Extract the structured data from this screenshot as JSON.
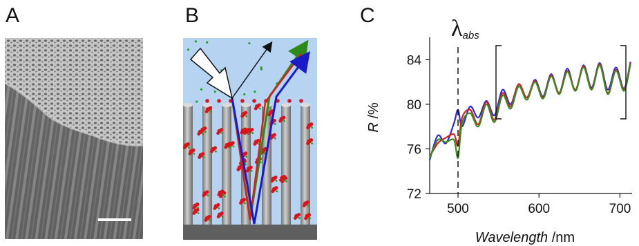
{
  "panels": {
    "a": {
      "letter": "A"
    },
    "b": {
      "letter": "B"
    },
    "c": {
      "letter": "C"
    }
  },
  "chart_data": {
    "type": "line",
    "title": "",
    "xlabel_italic": "Wavelength",
    "xlabel_unit": " /nm",
    "ylabel_italic": "R",
    "ylabel_unit": " /%",
    "xlim": [
      465,
      715
    ],
    "ylim": [
      72,
      86
    ],
    "xticks": [
      500,
      600,
      700
    ],
    "yticks": [
      72,
      76,
      80,
      84
    ],
    "annotation": {
      "symbol": "λ",
      "subscript": "abs",
      "x": 500
    },
    "series": [
      {
        "color": "#2a2ad8",
        "x": [
          465,
          475,
          485,
          495,
          500,
          505,
          515,
          525,
          535,
          545,
          555,
          565,
          575,
          585,
          595,
          605,
          615,
          625,
          635,
          645,
          655,
          665,
          675,
          685,
          695,
          705,
          713
        ],
        "y": [
          75.0,
          77.2,
          76.5,
          78.3,
          79.5,
          78.0,
          79.8,
          78.8,
          80.3,
          79.0,
          81.3,
          80.0,
          81.8,
          80.4,
          82.2,
          80.7,
          82.7,
          81.0,
          83.2,
          81.2,
          83.5,
          81.5,
          83.7,
          81.3,
          83.3,
          81.4,
          83.8
        ]
      },
      {
        "color": "#d42020",
        "x": [
          465,
          475,
          485,
          495,
          500,
          505,
          515,
          525,
          535,
          545,
          555,
          565,
          575,
          585,
          595,
          605,
          615,
          625,
          635,
          645,
          655,
          665,
          675,
          685,
          695,
          705,
          713
        ],
        "y": [
          75.3,
          76.5,
          77.0,
          77.3,
          76.3,
          78.8,
          79.5,
          78.2,
          80.2,
          78.6,
          81.0,
          79.8,
          81.8,
          80.6,
          82.1,
          80.6,
          82.6,
          81.0,
          83.0,
          81.3,
          83.4,
          81.4,
          83.6,
          81.0,
          83.1,
          81.3,
          83.7
        ]
      },
      {
        "color": "#3c8a1e",
        "x": [
          465,
          475,
          485,
          495,
          500,
          505,
          515,
          525,
          535,
          545,
          555,
          565,
          575,
          585,
          595,
          605,
          615,
          625,
          635,
          645,
          655,
          665,
          675,
          685,
          695,
          705,
          713
        ],
        "y": [
          75.2,
          76.8,
          76.6,
          76.8,
          75.2,
          78.3,
          79.2,
          78.0,
          80.0,
          78.4,
          80.8,
          79.6,
          81.6,
          80.4,
          82.0,
          80.5,
          82.5,
          80.9,
          82.9,
          81.2,
          83.3,
          81.3,
          83.5,
          80.9,
          83.0,
          81.2,
          83.6
        ]
      }
    ]
  }
}
